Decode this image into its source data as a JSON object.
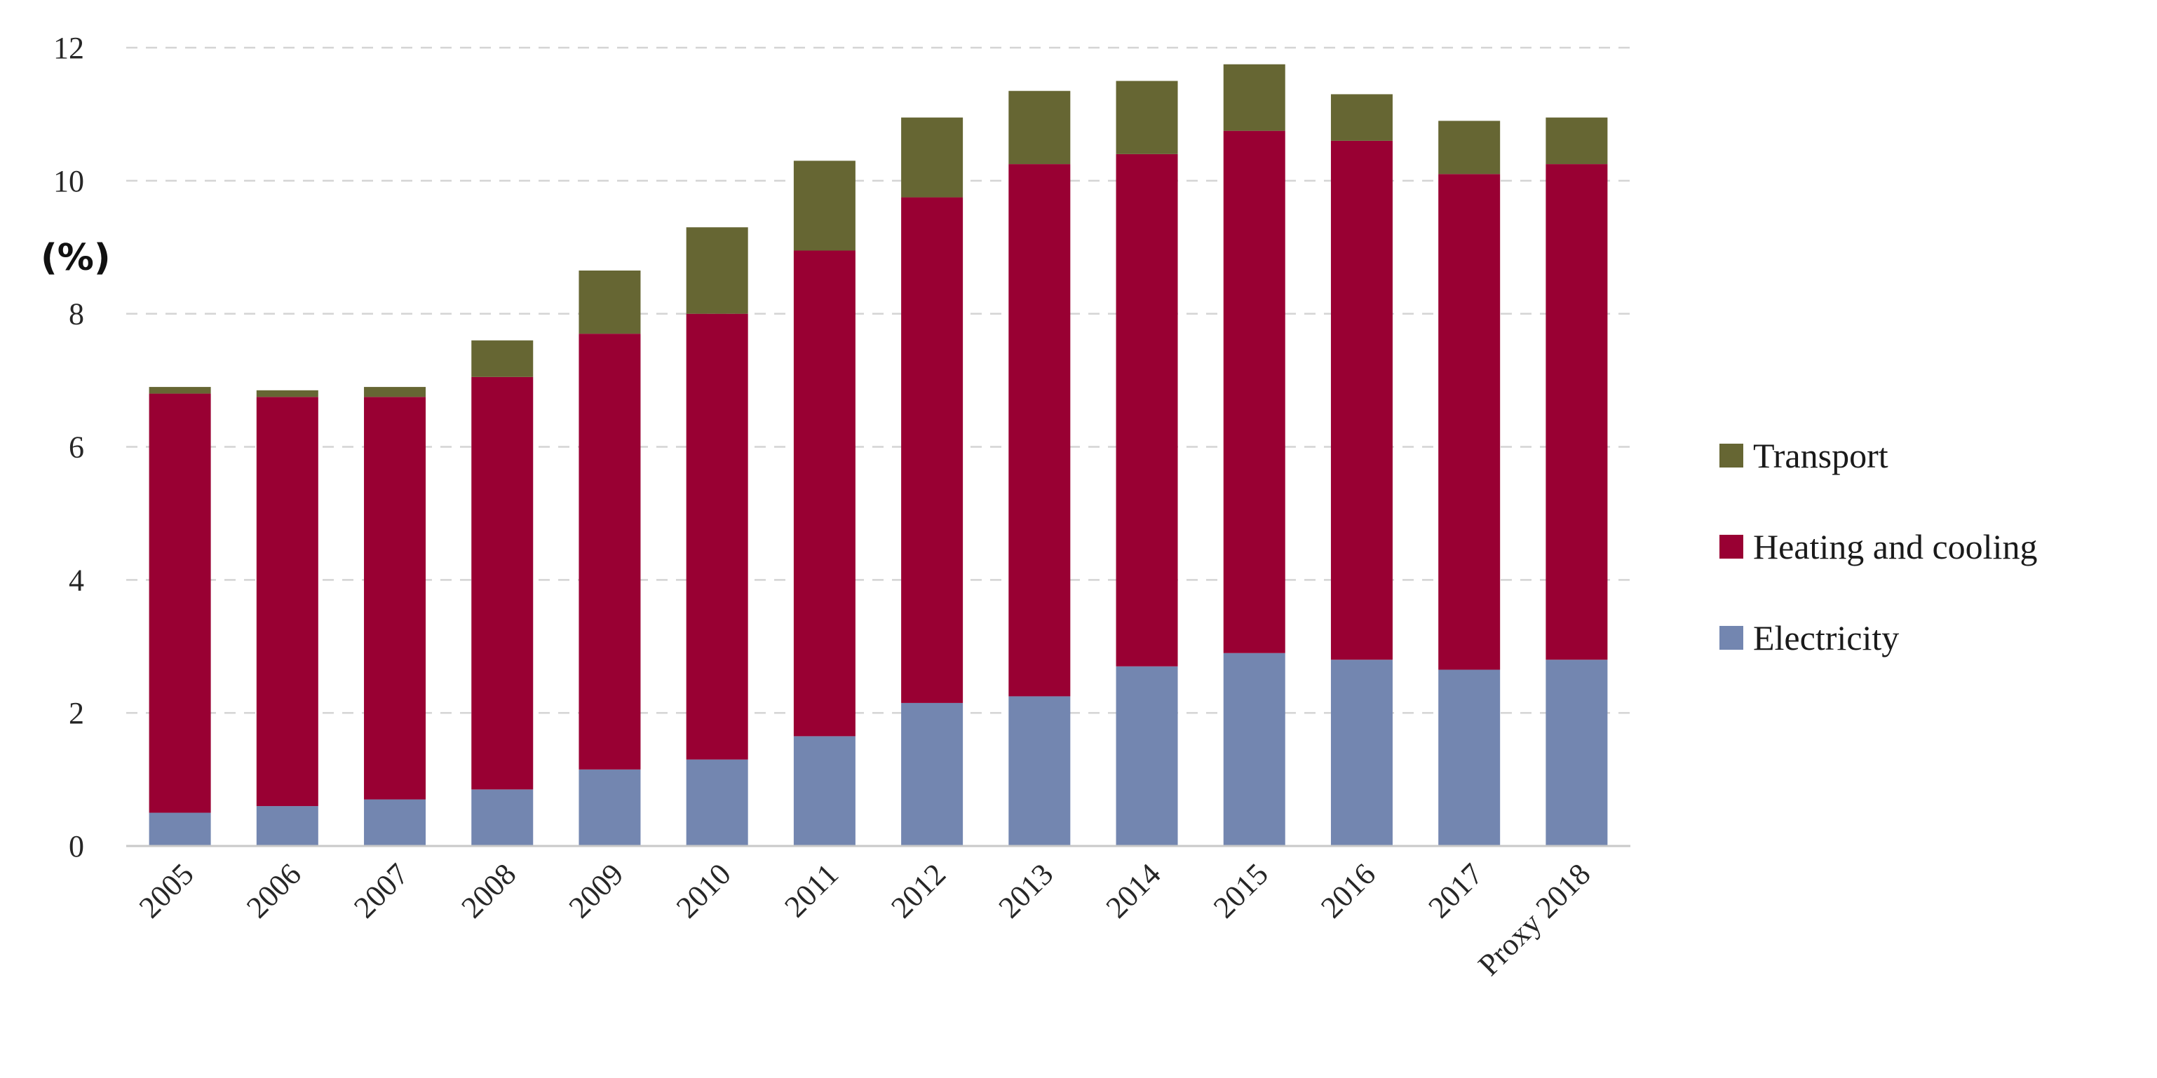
{
  "chart_data": {
    "type": "bar",
    "stacked": true,
    "title": "",
    "xlabel": "",
    "ylabel": "(%)",
    "ylim": [
      0,
      12
    ],
    "yticks": [
      0,
      2,
      4,
      6,
      8,
      10,
      12
    ],
    "grid": true,
    "legend_position": "right",
    "categories": [
      "2005",
      "2006",
      "2007",
      "2008",
      "2009",
      "2010",
      "2011",
      "2012",
      "2013",
      "2014",
      "2015",
      "2016",
      "2017",
      "Proxy 2018"
    ],
    "series": [
      {
        "name": "Electricity",
        "color": "#7386b0",
        "values": [
          0.5,
          0.6,
          0.7,
          0.85,
          1.15,
          1.3,
          1.65,
          2.15,
          2.25,
          2.7,
          2.9,
          2.8,
          2.65,
          2.8
        ]
      },
      {
        "name": "Heating and cooling",
        "color": "#990033",
        "values": [
          6.3,
          6.15,
          6.05,
          6.2,
          6.55,
          6.7,
          7.3,
          7.6,
          8.0,
          7.7,
          7.85,
          7.8,
          7.45,
          7.45
        ]
      },
      {
        "name": "Transport",
        "color": "#666633",
        "values": [
          0.1,
          0.1,
          0.15,
          0.55,
          0.95,
          1.3,
          1.35,
          1.2,
          1.1,
          1.1,
          1.0,
          0.7,
          0.8,
          0.7
        ]
      }
    ],
    "legend_order": [
      "Transport",
      "Heating and cooling",
      "Electricity"
    ]
  }
}
